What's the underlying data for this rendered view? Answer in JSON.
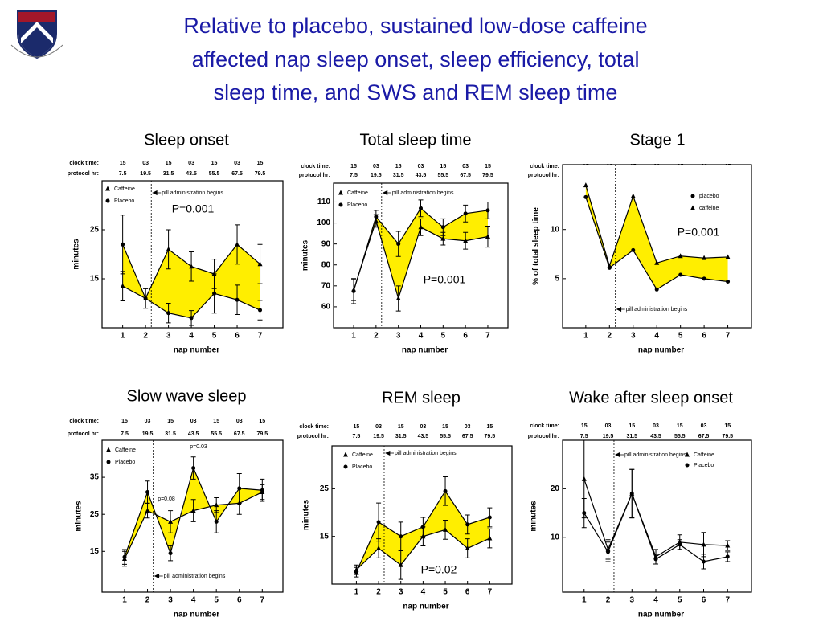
{
  "title_lines": [
    "Relative to placebo, sustained low-dose caffeine",
    "affected nap sleep onset, sleep efficiency, total",
    "sleep time, and SWS and REM sleep time"
  ],
  "header_rows": {
    "clock_label": "clock time:",
    "clock": [
      "15",
      "03",
      "15",
      "03",
      "15",
      "03",
      "15"
    ],
    "protocol_label": "protocol hr:",
    "protocol": [
      7.5,
      19.5,
      31.5,
      43.5,
      55.5,
      67.5,
      79.5
    ]
  },
  "chart_data": [
    {
      "type": "line",
      "title": "Sleep onset",
      "xlabel": "nap number",
      "ylabel": "minutes",
      "x": [
        1,
        2,
        3,
        4,
        5,
        6,
        7
      ],
      "xticks": [
        1,
        2,
        3,
        4,
        5,
        6,
        7
      ],
      "xlim": [
        0.1,
        8
      ],
      "ylim": [
        5,
        35
      ],
      "yticks": [
        15,
        25
      ],
      "fill_between": true,
      "fill_color": "#ffee00",
      "pill": {
        "text": "pill administration begins",
        "x": 2.25
      },
      "annotations": [
        "P=0.001"
      ],
      "series": [
        {
          "name": "Caffeine",
          "color": "#000000",
          "marker": "triangle",
          "values": [
            13.5,
            11,
            21,
            17.5,
            16,
            22,
            18
          ],
          "errors": [
            3,
            2,
            4,
            3,
            3,
            4,
            4
          ]
        },
        {
          "name": "Placebo",
          "color": "#000000",
          "marker": "circle",
          "values": [
            22,
            11,
            8,
            7,
            12,
            10.7,
            8.6
          ],
          "errors": [
            6,
            2,
            2,
            1.5,
            4,
            3,
            2
          ]
        }
      ]
    },
    {
      "type": "line",
      "title": "Total sleep time",
      "xlabel": "nap number",
      "ylabel": "minutes",
      "x": [
        1,
        2,
        3,
        4,
        5,
        6,
        7
      ],
      "xticks": [
        1,
        2,
        3,
        4,
        5,
        6,
        7
      ],
      "xlim": [
        0.1,
        7.9
      ],
      "ylim": [
        50,
        119
      ],
      "yticks": [
        60,
        70,
        80,
        90,
        100,
        110
      ],
      "fill_between": true,
      "fill_color": "#ffee00",
      "pill": {
        "text": "pill administration begins",
        "x": 2.25
      },
      "annotations": [
        "P=0.001"
      ],
      "series": [
        {
          "name": "Caffeine",
          "color": "#000000",
          "marker": "triangle",
          "values": [
            68,
            101,
            64,
            98,
            92.5,
            91.5,
            93.5
          ],
          "errors": [
            5,
            3,
            6,
            4,
            3,
            4,
            5
          ]
        },
        {
          "name": "Placebo",
          "color": "#000000",
          "marker": "circle",
          "values": [
            67.5,
            103,
            90,
            107,
            98,
            104.5,
            106
          ],
          "errors": [
            6,
            3,
            6,
            4,
            4,
            4,
            4
          ]
        }
      ]
    },
    {
      "type": "line",
      "title": "Stage 1",
      "xlabel": "nap number",
      "ylabel": "% of total sleep time",
      "x": [
        1,
        2,
        3,
        4,
        5,
        6,
        7
      ],
      "xticks": [
        1,
        2,
        3,
        4,
        5,
        6,
        7
      ],
      "xlim": [
        0.02,
        8
      ],
      "ylim": [
        0,
        16.6
      ],
      "yticks": [
        5,
        10
      ],
      "fill_between": true,
      "fill_color": "#ffee00",
      "pill": {
        "text": "pill administration begins",
        "x": 2.25
      },
      "annotations": [
        "P=0.001"
      ],
      "series": [
        {
          "name": "placebo",
          "color": "#000000",
          "marker": "circle",
          "values": [
            13.3,
            6.1,
            7.9,
            3.9,
            5.4,
            5.0,
            4.7
          ]
        },
        {
          "name": "caffeine",
          "color": "#000000",
          "marker": "triangle",
          "values": [
            14.5,
            6.3,
            13.4,
            6.6,
            7.3,
            7.1,
            7.2
          ]
        }
      ]
    },
    {
      "type": "line",
      "title": "Slow wave sleep",
      "xlabel": "nap number",
      "ylabel": "minutes",
      "x": [
        1,
        2,
        3,
        4,
        5,
        6,
        7
      ],
      "xticks": [
        1,
        2,
        3,
        4,
        5,
        6,
        7
      ],
      "xlim": [
        0.02,
        7.9
      ],
      "ylim": [
        4,
        45
      ],
      "yticks": [
        15,
        25,
        35
      ],
      "fill_between": true,
      "fill_color": "#ffee00",
      "pill": {
        "text": "pill administration begins",
        "x": 2.25
      },
      "annotations": [
        "p=0.03",
        "p=0.08"
      ],
      "series": [
        {
          "name": "Caffeine",
          "color": "#000000",
          "marker": "triangle",
          "values": [
            13,
            26,
            23,
            26,
            27.5,
            28,
            31
          ],
          "errors": [
            2,
            2,
            3,
            3,
            2,
            3,
            2
          ]
        },
        {
          "name": "Placebo",
          "color": "#000000",
          "marker": "circle",
          "values": [
            13.5,
            31,
            14.5,
            37.5,
            23,
            32,
            31.5
          ],
          "errors": [
            2,
            3,
            2,
            3,
            3,
            4,
            3
          ]
        }
      ]
    },
    {
      "type": "line",
      "title": "REM sleep",
      "xlabel": "nap number",
      "ylabel": "minutes",
      "x": [
        1,
        2,
        3,
        4,
        5,
        6,
        7
      ],
      "xticks": [
        1,
        2,
        3,
        4,
        5,
        6,
        7
      ],
      "xlim": [
        -0.1,
        8
      ],
      "ylim": [
        5,
        34
      ],
      "yticks": [
        15,
        25
      ],
      "fill_between": true,
      "fill_color": "#ffee00",
      "pill": {
        "text": "pill administration begins",
        "x": 2.25
      },
      "annotations": [
        "P=0.02"
      ],
      "series": [
        {
          "name": "Caffeine",
          "color": "#000000",
          "marker": "triangle",
          "values": [
            8,
            12.5,
            9,
            15,
            16.4,
            12.5,
            14.6
          ],
          "errors": [
            1,
            2,
            3,
            2,
            2,
            2,
            2
          ]
        },
        {
          "name": "Placebo",
          "color": "#000000",
          "marker": "circle",
          "values": [
            7.5,
            18,
            15,
            17,
            24.5,
            17.5,
            19
          ],
          "errors": [
            1,
            4,
            3,
            2,
            3,
            2,
            2
          ]
        }
      ]
    },
    {
      "type": "line",
      "title": "Wake after sleep onset",
      "xlabel": "nap number",
      "ylabel": "minutes",
      "x": [
        1,
        2,
        3,
        4,
        5,
        6,
        7
      ],
      "xticks": [
        1,
        2,
        3,
        4,
        5,
        6,
        7
      ],
      "xlim": [
        0.1,
        8
      ],
      "ylim": [
        -1.3,
        30
      ],
      "yticks": [
        10,
        20
      ],
      "fill_between": false,
      "pill": {
        "text": "pill administration begins",
        "x": 2.25
      },
      "annotations": [],
      "series": [
        {
          "name": "Caffeine",
          "color": "#000000",
          "marker": "triangle",
          "values": [
            22,
            7.5,
            19,
            6,
            9,
            8.5,
            8.3
          ],
          "errors": [
            8,
            2,
            5,
            1.5,
            1.5,
            2.5,
            1
          ]
        },
        {
          "name": "Placebo",
          "color": "#000000",
          "marker": "circle",
          "values": [
            15,
            7,
            19,
            5.5,
            8.5,
            5,
            6
          ],
          "errors": [
            3,
            2,
            5,
            1,
            1,
            1.5,
            1
          ]
        }
      ]
    }
  ]
}
